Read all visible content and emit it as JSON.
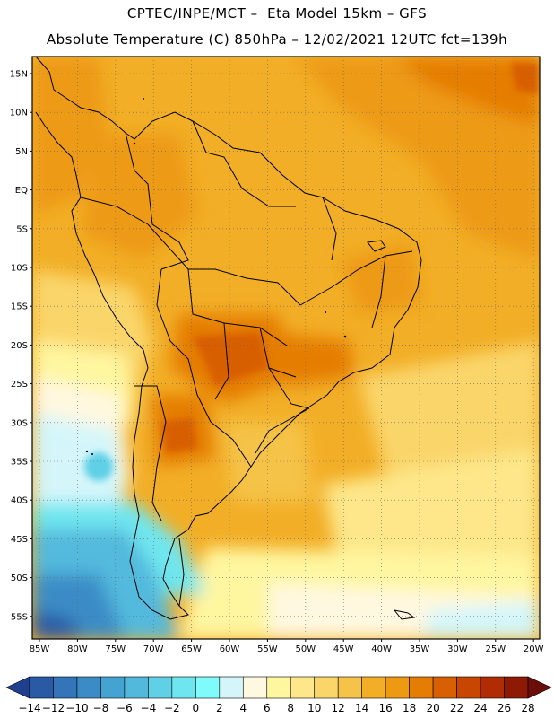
{
  "header": {
    "line1": "CPTEC/INPE/MCT –  Eta Model 15km – GFS",
    "line2": "Absolute Temperature (C) 850hPa – 12/02/2021 12UTC fct=139h"
  },
  "map": {
    "lat_labels": [
      "15N",
      "10N",
      "5N",
      "EQ",
      "5S",
      "10S",
      "15S",
      "20S",
      "25S",
      "30S",
      "35S",
      "40S",
      "45S",
      "50S",
      "55S"
    ],
    "lon_labels": [
      "85W",
      "80W",
      "75W",
      "70W",
      "65W",
      "60W",
      "55W",
      "50W",
      "45W",
      "40W",
      "35W",
      "30W",
      "25W",
      "20W"
    ]
  },
  "colorbar": {
    "labels": [
      "-14",
      "-12",
      "-10",
      "-8",
      "-6",
      "-4",
      "-2",
      "0",
      "2",
      "4",
      "6",
      "8",
      "10",
      "12",
      "14",
      "16",
      "18",
      "20",
      "22",
      "24",
      "26",
      "28"
    ],
    "colors": [
      "#1f3f8f",
      "#2a5aa6",
      "#3474b8",
      "#3b8cc6",
      "#45a3d2",
      "#52b9dd",
      "#5fd0e6",
      "#6fe6ef",
      "#7ffbfb",
      "#d4f6fa",
      "#fff8e0",
      "#fff6a0",
      "#fde78a",
      "#fad66a",
      "#f5c347",
      "#f2ae26",
      "#ed9a12",
      "#e57d05",
      "#d85f02",
      "#c84502",
      "#b02c04",
      "#8e1a06",
      "#6b0d08"
    ]
  }
}
